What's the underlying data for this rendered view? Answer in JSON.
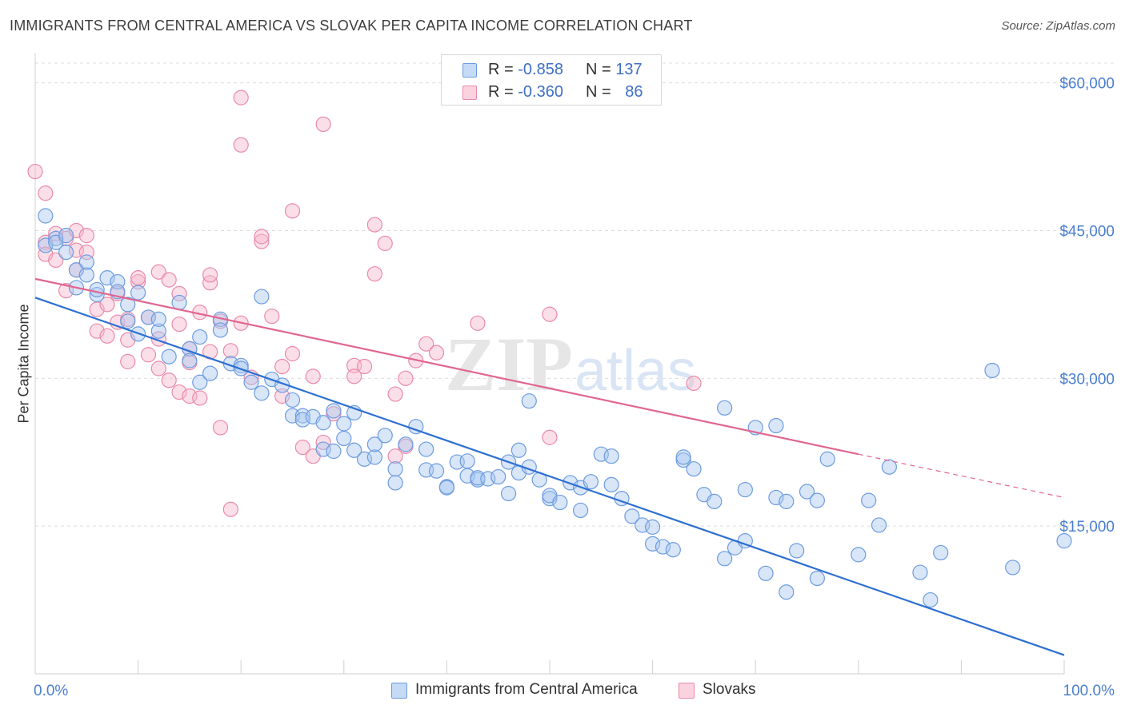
{
  "header": {
    "title": "IMMIGRANTS FROM CENTRAL AMERICA VS SLOVAK PER CAPITA INCOME CORRELATION CHART",
    "source": "Source: ZipAtlas.com"
  },
  "watermark": "ZIPatlas",
  "legend_top": {
    "rows": [
      {
        "r_label": "R =",
        "r_value": "-0.858",
        "n_label": "N =",
        "n_value": "137"
      },
      {
        "r_label": "R =",
        "r_value": "-0.360",
        "n_label": "N =",
        "n_value": "86"
      }
    ]
  },
  "legend_bottom": {
    "items": [
      {
        "label": "Immigrants from Central America"
      },
      {
        "label": "Slovaks"
      }
    ]
  },
  "colors": {
    "blue_fill": "#a9c8ef",
    "blue_stroke": "#6c9be0",
    "blue_line": "#2d6fd1",
    "pink_fill": "#f6b9cb",
    "pink_stroke": "#ea8aa8",
    "pink_line": "#e06690",
    "tick_text": "#4a7fd0",
    "grid": "#dddddd"
  },
  "chart_data": {
    "type": "scatter",
    "title": "IMMIGRANTS FROM CENTRAL AMERICA VS SLOVAK PER CAPITA INCOME CORRELATION CHART",
    "xlabel": "",
    "ylabel": "Per Capita Income",
    "xlim": [
      0,
      100
    ],
    "ylim": [
      0,
      62000
    ],
    "x_tick_labels": [
      "0.0%",
      "100.0%"
    ],
    "y_ticks": [
      15000,
      30000,
      45000,
      60000
    ],
    "y_tick_labels": [
      "$15,000",
      "$30,000",
      "$45,000",
      "$60,000"
    ],
    "grid": "horizontal dashed",
    "legend_placement": "top-center and bottom",
    "series": [
      {
        "name": "Immigrants from Central America",
        "color": "#6c9be0",
        "trend": {
          "x": [
            0,
            100
          ],
          "y": [
            38200,
            1900
          ]
        },
        "points": [
          [
            1,
            46500
          ],
          [
            1,
            43500
          ],
          [
            2,
            44200
          ],
          [
            2,
            43800
          ],
          [
            3,
            42800
          ],
          [
            3,
            44500
          ],
          [
            4,
            41000
          ],
          [
            4,
            39200
          ],
          [
            5,
            40500
          ],
          [
            5,
            41800
          ],
          [
            6,
            38500
          ],
          [
            6,
            39000
          ],
          [
            7,
            40200
          ],
          [
            8,
            39800
          ],
          [
            8,
            38800
          ],
          [
            9,
            37500
          ],
          [
            9,
            35800
          ],
          [
            10,
            38700
          ],
          [
            10,
            34500
          ],
          [
            11,
            36200
          ],
          [
            12,
            34800
          ],
          [
            12,
            36000
          ],
          [
            13,
            32200
          ],
          [
            14,
            37700
          ],
          [
            15,
            33000
          ],
          [
            15,
            31800
          ],
          [
            16,
            29600
          ],
          [
            16,
            34200
          ],
          [
            17,
            30500
          ],
          [
            18,
            36000
          ],
          [
            18,
            34900
          ],
          [
            19,
            31500
          ],
          [
            20,
            31300
          ],
          [
            20,
            31000
          ],
          [
            21,
            29600
          ],
          [
            22,
            28500
          ],
          [
            22,
            38300
          ],
          [
            23,
            29900
          ],
          [
            24,
            29300
          ],
          [
            25,
            27800
          ],
          [
            25,
            26200
          ],
          [
            26,
            26200
          ],
          [
            26,
            25800
          ],
          [
            27,
            26100
          ],
          [
            28,
            22800
          ],
          [
            28,
            25500
          ],
          [
            29,
            22600
          ],
          [
            29,
            26700
          ],
          [
            30,
            23900
          ],
          [
            30,
            25400
          ],
          [
            31,
            22700
          ],
          [
            31,
            26500
          ],
          [
            32,
            21800
          ],
          [
            33,
            22000
          ],
          [
            33,
            23300
          ],
          [
            34,
            24200
          ],
          [
            35,
            20800
          ],
          [
            35,
            19400
          ],
          [
            36,
            23300
          ],
          [
            37,
            25100
          ],
          [
            38,
            22800
          ],
          [
            38,
            20700
          ],
          [
            39,
            20600
          ],
          [
            40,
            19000
          ],
          [
            40,
            18900
          ],
          [
            41,
            21500
          ],
          [
            42,
            21600
          ],
          [
            42,
            20100
          ],
          [
            43,
            19700
          ],
          [
            43,
            19900
          ],
          [
            44,
            19800
          ],
          [
            45,
            20000
          ],
          [
            46,
            18300
          ],
          [
            46,
            21500
          ],
          [
            47,
            20400
          ],
          [
            47,
            22700
          ],
          [
            48,
            27700
          ],
          [
            48,
            21000
          ],
          [
            49,
            19700
          ],
          [
            50,
            17800
          ],
          [
            50,
            18100
          ],
          [
            51,
            17400
          ],
          [
            52,
            19400
          ],
          [
            53,
            16600
          ],
          [
            53,
            18900
          ],
          [
            54,
            19500
          ],
          [
            55,
            22300
          ],
          [
            56,
            22100
          ],
          [
            56,
            19200
          ],
          [
            57,
            17800
          ],
          [
            58,
            16000
          ],
          [
            59,
            15100
          ],
          [
            60,
            13200
          ],
          [
            60,
            14900
          ],
          [
            61,
            12900
          ],
          [
            62,
            12600
          ],
          [
            63,
            21700
          ],
          [
            63,
            22000
          ],
          [
            64,
            20800
          ],
          [
            65,
            18200
          ],
          [
            66,
            17500
          ],
          [
            67,
            11700
          ],
          [
            67,
            27000
          ],
          [
            68,
            12800
          ],
          [
            69,
            13500
          ],
          [
            69,
            18700
          ],
          [
            70,
            25000
          ],
          [
            71,
            10200
          ],
          [
            72,
            25200
          ],
          [
            72,
            17900
          ],
          [
            73,
            17500
          ],
          [
            73,
            8300
          ],
          [
            74,
            12500
          ],
          [
            75,
            18500
          ],
          [
            76,
            17600
          ],
          [
            76,
            9700
          ],
          [
            77,
            21800
          ],
          [
            80,
            12100
          ],
          [
            81,
            17600
          ],
          [
            82,
            15100
          ],
          [
            83,
            21000
          ],
          [
            86,
            10300
          ],
          [
            87,
            7500
          ],
          [
            88,
            12300
          ],
          [
            93,
            30800
          ],
          [
            95,
            10800
          ],
          [
            100,
            13500
          ]
        ]
      },
      {
        "name": "Slovaks",
        "color": "#ea8aa8",
        "trend": {
          "x": [
            0,
            80
          ],
          "y": [
            40100,
            22300
          ]
        },
        "trend_dashed": {
          "x": [
            80,
            100
          ],
          "y": [
            22300,
            17900
          ]
        },
        "points": [
          [
            0,
            51000
          ],
          [
            1,
            48800
          ],
          [
            1,
            43800
          ],
          [
            1,
            42600
          ],
          [
            2,
            44700
          ],
          [
            2,
            42000
          ],
          [
            3,
            44200
          ],
          [
            3,
            38900
          ],
          [
            4,
            45000
          ],
          [
            4,
            41000
          ],
          [
            4,
            43000
          ],
          [
            5,
            44500
          ],
          [
            5,
            42800
          ],
          [
            6,
            37000
          ],
          [
            6,
            34800
          ],
          [
            7,
            37500
          ],
          [
            7,
            34300
          ],
          [
            8,
            35700
          ],
          [
            8,
            38600
          ],
          [
            9,
            31700
          ],
          [
            9,
            33900
          ],
          [
            9,
            36000
          ],
          [
            10,
            39800
          ],
          [
            10,
            40200
          ],
          [
            11,
            36200
          ],
          [
            11,
            32400
          ],
          [
            12,
            34000
          ],
          [
            12,
            40800
          ],
          [
            12,
            31000
          ],
          [
            13,
            29800
          ],
          [
            13,
            40000
          ],
          [
            14,
            28600
          ],
          [
            14,
            35500
          ],
          [
            14,
            38600
          ],
          [
            15,
            31600
          ],
          [
            15,
            28200
          ],
          [
            15,
            33000
          ],
          [
            16,
            28000
          ],
          [
            16,
            36700
          ],
          [
            17,
            32700
          ],
          [
            17,
            39700
          ],
          [
            17,
            40500
          ],
          [
            18,
            25000
          ],
          [
            18,
            35800
          ],
          [
            19,
            16700
          ],
          [
            19,
            32800
          ],
          [
            20,
            35600
          ],
          [
            20,
            58500
          ],
          [
            20,
            53700
          ],
          [
            21,
            30100
          ],
          [
            22,
            43900
          ],
          [
            22,
            44400
          ],
          [
            23,
            36300
          ],
          [
            24,
            31200
          ],
          [
            24,
            28200
          ],
          [
            25,
            32500
          ],
          [
            25,
            47000
          ],
          [
            26,
            23000
          ],
          [
            27,
            22100
          ],
          [
            27,
            30200
          ],
          [
            28,
            55800
          ],
          [
            28,
            23500
          ],
          [
            29,
            26400
          ],
          [
            31,
            31300
          ],
          [
            31,
            30200
          ],
          [
            32,
            31200
          ],
          [
            33,
            45600
          ],
          [
            33,
            40600
          ],
          [
            34,
            43700
          ],
          [
            35,
            28400
          ],
          [
            35,
            22100
          ],
          [
            36,
            23100
          ],
          [
            36,
            30000
          ],
          [
            37,
            31800
          ],
          [
            38,
            33500
          ],
          [
            39,
            32600
          ],
          [
            43,
            35600
          ],
          [
            50,
            24000
          ],
          [
            50,
            36500
          ],
          [
            64,
            29500
          ]
        ]
      }
    ]
  }
}
